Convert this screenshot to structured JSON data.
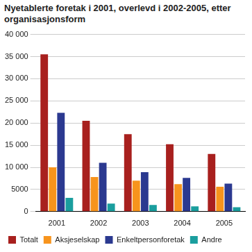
{
  "chart_data": {
    "type": "bar",
    "title": "Nyetablerte foretak i 2001, overlevd i 2002-2005, etter organisasjonsform",
    "categories": [
      "2001",
      "2002",
      "2003",
      "2004",
      "2005"
    ],
    "series": [
      {
        "name": "Totalt",
        "color": "#a8201e",
        "values": [
          35500,
          20500,
          17500,
          15200,
          13000
        ]
      },
      {
        "name": "Aksjeselskap",
        "color": "#f7941d",
        "values": [
          10000,
          7800,
          7000,
          6200,
          5600
        ]
      },
      {
        "name": "Enkeltpersonforetak",
        "color": "#2b3990",
        "values": [
          22300,
          11000,
          8900,
          7600,
          6300
        ]
      },
      {
        "name": "Andre",
        "color": "#1a9e9e",
        "values": [
          3100,
          1800,
          1500,
          1200,
          1000
        ]
      }
    ],
    "ylim": [
      0,
      40000
    ],
    "yticks": [
      0,
      {
        "value": 5000,
        "label": "5000"
      },
      {
        "value": 10000,
        "label": "10 000"
      },
      {
        "value": 15000,
        "label": "15 000"
      },
      {
        "value": 20000,
        "label": "20 000"
      },
      {
        "value": 25000,
        "label": "25 000"
      },
      {
        "value": 30000,
        "label": "30 000"
      },
      {
        "value": 35000,
        "label": "35 000"
      },
      {
        "value": 40000,
        "label": "40 000"
      }
    ],
    "grid": true,
    "legend": "bottom"
  }
}
